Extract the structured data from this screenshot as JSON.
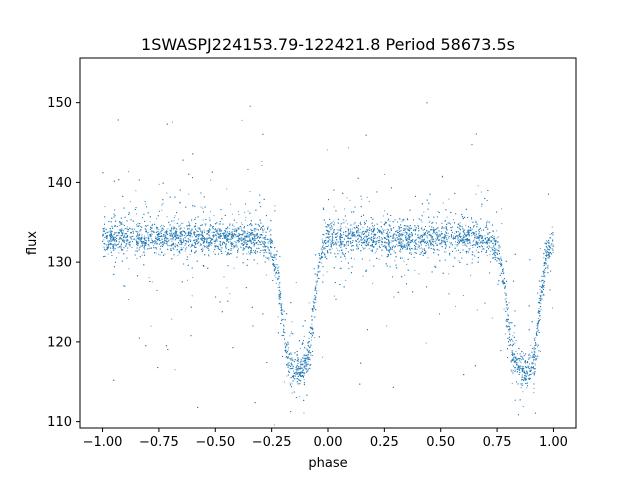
{
  "chart_data": {
    "type": "scatter",
    "title": "1SWASPJ224153.79-122421.8 Period 58673.5s",
    "xlabel": "phase",
    "ylabel": "flux",
    "xlim": [
      -1.1,
      1.1
    ],
    "ylim": [
      109.2,
      155.6
    ],
    "xticks": [
      -1.0,
      -0.75,
      -0.5,
      -0.25,
      0.0,
      0.25,
      0.5,
      0.75,
      1.0
    ],
    "xtick_labels": [
      "−1.00",
      "−0.75",
      "−0.50",
      "−0.25",
      "0.00",
      "0.25",
      "0.50",
      "0.75",
      "1.00"
    ],
    "yticks": [
      110,
      120,
      130,
      140,
      150
    ],
    "ytick_labels": [
      "110",
      "120",
      "130",
      "140",
      "150"
    ],
    "grid": false,
    "point_color": "#1f77b4",
    "series": [
      {
        "light_curve_profile": {
          "phase": [
            -1.0,
            -0.9,
            -0.8,
            -0.7,
            -0.6,
            -0.5,
            -0.4,
            -0.3,
            -0.25,
            -0.22,
            -0.2,
            -0.18,
            -0.16,
            -0.14,
            -0.12,
            -0.1,
            -0.08,
            -0.06,
            -0.03,
            0.0,
            0.1,
            0.2,
            0.3,
            0.4,
            0.5,
            0.6,
            0.7,
            0.75,
            0.78,
            0.8,
            0.82,
            0.84,
            0.86,
            0.88,
            0.9,
            0.92,
            0.94,
            0.97,
            1.0
          ],
          "flux": [
            133,
            133,
            133,
            133,
            133,
            133,
            133,
            133,
            132,
            128,
            122,
            118,
            117,
            116.5,
            116.5,
            117,
            119,
            125,
            131,
            133,
            133,
            133,
            133,
            133,
            133,
            133,
            133,
            132,
            128,
            122,
            118,
            117,
            116.5,
            116.5,
            117,
            119,
            125,
            131,
            133
          ]
        },
        "baseline_flux": 133,
        "eclipse_min_flux": 116.5
      }
    ]
  }
}
